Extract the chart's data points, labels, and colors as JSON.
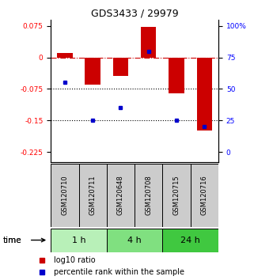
{
  "title": "GDS3433 / 29979",
  "samples": [
    "GSM120710",
    "GSM120711",
    "GSM120648",
    "GSM120708",
    "GSM120715",
    "GSM120716"
  ],
  "log10_ratio": [
    0.01,
    -0.065,
    -0.045,
    0.072,
    -0.085,
    -0.175
  ],
  "percentile_rank": [
    55,
    25,
    35,
    80,
    25,
    20
  ],
  "groups": [
    {
      "label": "1 h",
      "samples": [
        0,
        1
      ],
      "color": "#b8f0b8"
    },
    {
      "label": "4 h",
      "samples": [
        2,
        3
      ],
      "color": "#80e080"
    },
    {
      "label": "24 h",
      "samples": [
        4,
        5
      ],
      "color": "#40c840"
    }
  ],
  "bar_color": "#cc0000",
  "dot_color": "#0000cc",
  "ymin": -0.25,
  "ymax": 0.09,
  "yticks_left": [
    0.075,
    0.0,
    -0.075,
    -0.15,
    -0.225
  ],
  "yticks_left_labels": [
    "0.075",
    "0",
    "-0.075",
    "-0.15",
    "-0.225"
  ],
  "yticks_right_pct": [
    100,
    75,
    50,
    25,
    0
  ],
  "yticks_right_labels": [
    "100%",
    "75",
    "50",
    "25",
    "0"
  ],
  "hline_dotted1": -0.075,
  "hline_dotted2": -0.15,
  "sample_box_color": "#cccccc",
  "legend_red": "log10 ratio",
  "legend_blue": "percentile rank within the sample",
  "bar_width": 0.55
}
